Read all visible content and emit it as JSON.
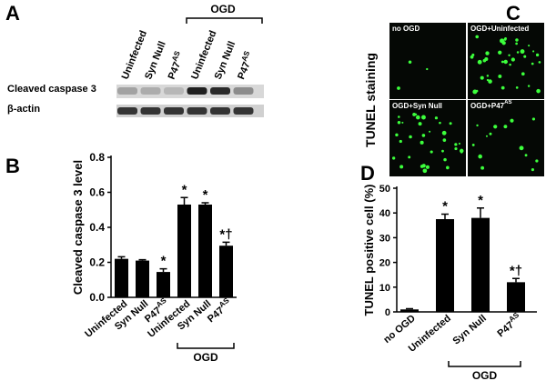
{
  "panel_a": {
    "label": "A",
    "group_label": "OGD",
    "lanes": [
      "Uninfected",
      "Syn Null",
      "P47",
      "Uninfected",
      "Syn Null",
      "P47"
    ],
    "lane_superscripts": {
      "2": "AS",
      "5": "AS"
    },
    "rows": [
      "Cleaved caspase 3",
      "β-actin"
    ]
  },
  "panel_c": {
    "label": "C",
    "side_label": "TUNEL staining",
    "images": [
      "no OGD",
      "OGD+Uninfected",
      "OGD+Syn Null",
      "OGD+P47"
    ],
    "image_superscripts": {
      "3": "AS"
    }
  },
  "chart_data": [
    {
      "type": "bar",
      "panel_label": "B",
      "ylabel": "Cleaved caspase 3 level",
      "group_label": "OGD",
      "categories": [
        "Uninfected",
        "Syn Null",
        "P47",
        "Uninfected",
        "Syn Null",
        "P47"
      ],
      "category_superscripts": {
        "2": "AS",
        "5": "AS"
      },
      "values": [
        0.22,
        0.21,
        0.145,
        0.53,
        0.53,
        0.295
      ],
      "errors": [
        0.012,
        0.005,
        0.018,
        0.04,
        0.01,
        0.02
      ],
      "annotations": {
        "2": "*",
        "3": "*",
        "4": "*",
        "5": "*†"
      },
      "color": "#000000",
      "ylim": [
        0,
        0.8
      ],
      "yticks": [
        {
          "value": 0,
          "label": "0.0"
        },
        0.2,
        0.4,
        0.6,
        0.8
      ]
    },
    {
      "type": "bar",
      "panel_label": "D",
      "ylabel": "TUNEL positive cell (%)",
      "group_label": "OGD",
      "categories": [
        "no OGD",
        "Uninfected",
        "Syn Null",
        "P47"
      ],
      "category_superscripts": {
        "3": "AS"
      },
      "values": [
        1,
        37.5,
        38,
        12
      ],
      "errors": [
        0.3,
        2,
        4,
        1.5
      ],
      "annotations": {
        "1": "*",
        "2": "*",
        "3": "*†"
      },
      "color": "#000000",
      "ylim": [
        0,
        50
      ],
      "yticks": [
        0,
        10,
        20,
        30,
        40,
        50
      ]
    }
  ]
}
